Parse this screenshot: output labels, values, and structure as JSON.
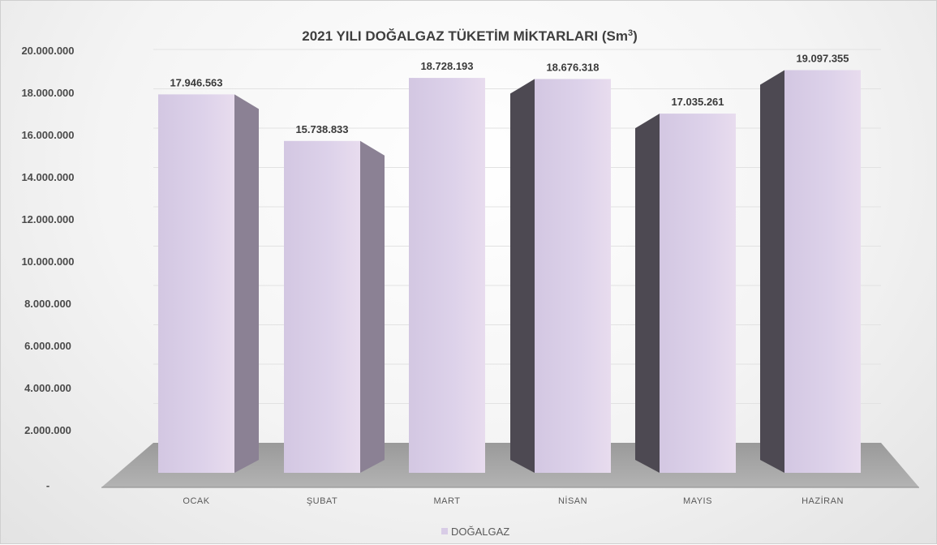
{
  "chart_data": {
    "type": "bar",
    "title": "2021 YILI DOĞALGAZ TÜKETİM MİKTARLARI (Sm",
    "title_superscript": "3",
    "title_suffix": ")",
    "categories": [
      "OCAK",
      "ŞUBAT",
      "MART",
      "NİSAN",
      "MAYIS",
      "HAZİRAN"
    ],
    "series": [
      {
        "name": "DOĞALGAZ",
        "values": [
          17946563,
          15738833,
          18728193,
          18676318,
          17035261,
          19097355
        ],
        "value_labels": [
          "17.946.563",
          "15.738.833",
          "18.728.193",
          "18.676.318",
          "17.035.261",
          "19.097.355"
        ],
        "color": "#d8cce6"
      }
    ],
    "ylim": [
      0,
      20000000
    ],
    "yticks": [
      0,
      2000000,
      4000000,
      6000000,
      8000000,
      10000000,
      12000000,
      14000000,
      16000000,
      18000000,
      20000000
    ],
    "ytick_labels": [
      "-",
      "2.000.000",
      "4.000.000",
      "6.000.000",
      "8.000.000",
      "10.000.000",
      "12.000.000",
      "14.000.000",
      "16.000.000",
      "18.000.000",
      "20.000.000"
    ],
    "xlabel": "",
    "ylabel": "",
    "grid": true,
    "legend_position": "bottom",
    "style": "3d-column"
  }
}
